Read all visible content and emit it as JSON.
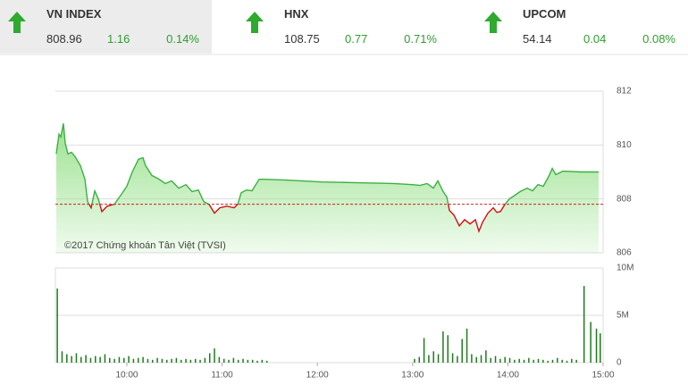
{
  "indices": [
    {
      "name": "VN INDEX",
      "value": "808.96",
      "change": "1.16",
      "pct": "0.14%"
    },
    {
      "name": "HNX",
      "value": "108.75",
      "change": "0.77",
      "pct": "0.71%"
    },
    {
      "name": "UPCOM",
      "value": "54.14",
      "change": "0.04",
      "pct": "0.08%"
    }
  ],
  "chart_data": [
    {
      "type": "line",
      "annotation": "©2017 Chứng khoán Tân Việt (TVSI)",
      "xlim": [
        9.25,
        15
      ],
      "ylim": [
        806,
        812
      ],
      "yticks": [
        806,
        808,
        810,
        812
      ],
      "grid": true,
      "reference": 807.8,
      "up_color": "#3cb043",
      "down_color": "#d01010",
      "fill_color": "#9be28f",
      "x": [
        9.259,
        9.288,
        9.307,
        9.334,
        9.353,
        9.381,
        9.419,
        9.456,
        9.513,
        9.56,
        9.588,
        9.625,
        9.663,
        9.7,
        9.738,
        9.794,
        9.869,
        9.935,
        10.0,
        10.057,
        10.122,
        10.169,
        10.197,
        10.263,
        10.338,
        10.404,
        10.47,
        10.545,
        10.62,
        10.685,
        10.751,
        10.807,
        10.863,
        10.92,
        10.976,
        11.051,
        11.126,
        11.164,
        11.201,
        11.257,
        11.314,
        11.389,
        11.445,
        11.67,
        12.045,
        12.421,
        12.796,
        13.0,
        13.077,
        13.152,
        13.218,
        13.265,
        13.321,
        13.359,
        13.387,
        13.434,
        13.49,
        13.546,
        13.603,
        13.659,
        13.696,
        13.734,
        13.79,
        13.847,
        13.884,
        13.922,
        13.969,
        14.016,
        14.072,
        14.128,
        14.203,
        14.259,
        14.316,
        14.372,
        14.428,
        14.466,
        14.503,
        14.578,
        14.766,
        14.953
      ],
      "values": [
        809.67,
        810.4,
        810.3,
        810.8,
        810.07,
        809.67,
        809.73,
        809.57,
        809.23,
        808.73,
        807.9,
        807.67,
        808.3,
        808.0,
        807.53,
        807.73,
        807.8,
        808.13,
        808.47,
        809.0,
        809.47,
        809.53,
        809.23,
        808.87,
        808.73,
        808.57,
        808.67,
        808.4,
        808.53,
        808.27,
        808.33,
        807.9,
        807.8,
        807.47,
        807.67,
        807.73,
        807.67,
        807.8,
        808.23,
        808.33,
        808.3,
        808.73,
        808.73,
        808.7,
        808.63,
        808.6,
        808.57,
        808.53,
        808.5,
        808.57,
        808.4,
        808.67,
        808.27,
        808.07,
        807.57,
        807.4,
        807.0,
        807.23,
        807.07,
        807.23,
        806.8,
        807.13,
        807.47,
        807.67,
        807.5,
        807.53,
        807.8,
        808.0,
        808.13,
        808.27,
        808.4,
        808.3,
        808.53,
        808.47,
        808.83,
        809.13,
        808.9,
        809.03,
        809.0,
        809.0
      ]
    },
    {
      "type": "bar",
      "color": "#1f7a1f",
      "xlim": [
        9.25,
        15
      ],
      "xticks": [
        {
          "value": 10,
          "label": "10:00"
        },
        {
          "value": 11,
          "label": "11:00"
        },
        {
          "value": 12,
          "label": "12:00"
        },
        {
          "value": 13,
          "label": "13:00"
        },
        {
          "value": 14,
          "label": "14:00"
        },
        {
          "value": 15,
          "label": "15:00"
        }
      ],
      "y2lim": [
        0,
        10000000
      ],
      "y2ticks": [
        0,
        {
          "value": 5000000,
          "label": "5M"
        },
        {
          "value": 10000000,
          "label": "10M"
        }
      ],
      "grid": true,
      "x": [
        9.27,
        9.32,
        9.37,
        9.42,
        9.47,
        9.52,
        9.57,
        9.62,
        9.67,
        9.72,
        9.77,
        9.82,
        9.87,
        9.92,
        9.97,
        10.02,
        10.07,
        10.12,
        10.17,
        10.22,
        10.27,
        10.32,
        10.37,
        10.42,
        10.47,
        10.52,
        10.57,
        10.62,
        10.67,
        10.72,
        10.77,
        10.82,
        10.87,
        10.92,
        10.97,
        11.02,
        11.07,
        11.12,
        11.17,
        11.22,
        11.27,
        11.32,
        11.37,
        11.42,
        11.47,
        13.02,
        13.07,
        13.12,
        13.17,
        13.22,
        13.27,
        13.32,
        13.37,
        13.42,
        13.47,
        13.52,
        13.57,
        13.62,
        13.67,
        13.72,
        13.77,
        13.82,
        13.87,
        13.92,
        13.97,
        14.02,
        14.07,
        14.12,
        14.17,
        14.22,
        14.27,
        14.32,
        14.37,
        14.42,
        14.47,
        14.52,
        14.57,
        14.62,
        14.67,
        14.72,
        14.8,
        14.87,
        14.93,
        14.97
      ],
      "values": [
        7830000,
        1200000,
        900000,
        700000,
        1000000,
        600000,
        800000,
        500000,
        700000,
        600000,
        900000,
        500000,
        400000,
        600000,
        500000,
        700000,
        400000,
        500000,
        600000,
        400000,
        300000,
        500000,
        400000,
        300000,
        400000,
        500000,
        300000,
        400000,
        300000,
        400000,
        300000,
        500000,
        1000000,
        1500000,
        600000,
        400000,
        300000,
        500000,
        300000,
        400000,
        300000,
        300000,
        200000,
        300000,
        200000,
        400000,
        600000,
        2600000,
        800000,
        1200000,
        900000,
        3300000,
        2900000,
        1000000,
        700000,
        2500000,
        3600000,
        900000,
        600000,
        800000,
        1300000,
        500000,
        700000,
        400000,
        600000,
        500000,
        300000,
        400000,
        300000,
        500000,
        300000,
        400000,
        300000,
        200000,
        300000,
        500000,
        300000,
        200000,
        400000,
        300000,
        8100000,
        4300000,
        3600000,
        3100000
      ]
    }
  ]
}
